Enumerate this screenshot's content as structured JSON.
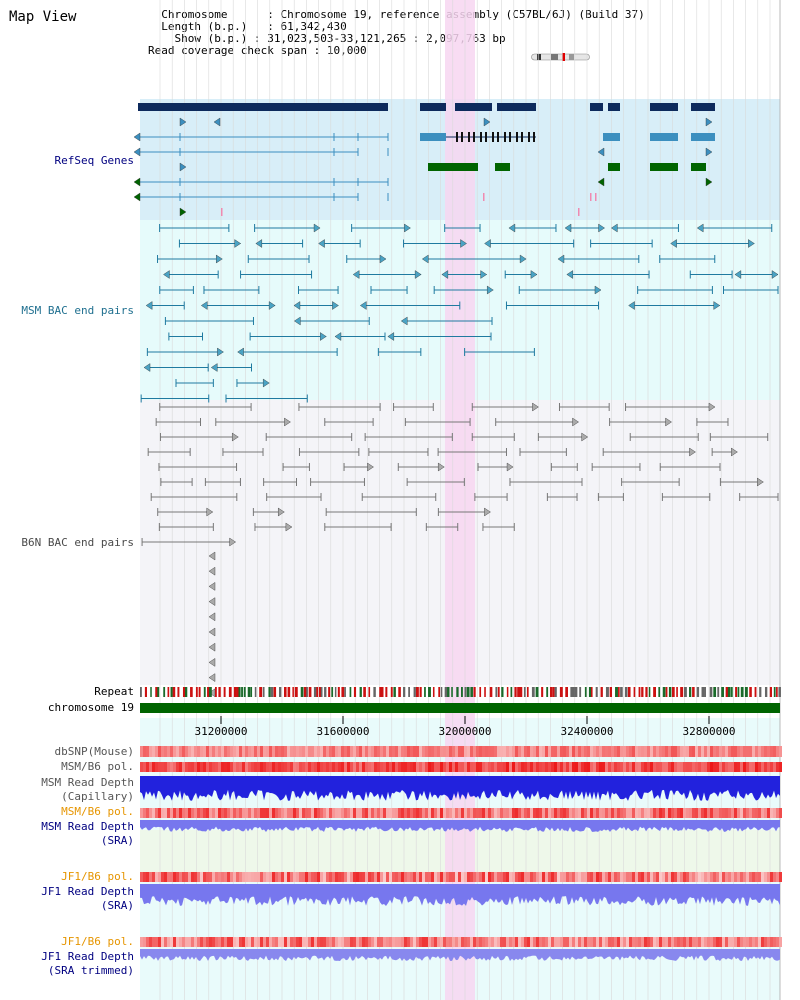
{
  "page_title": "Map View",
  "info": {
    "chromosome_label": "Chromosome",
    "chromosome_value": "Chromosome 19, reference assembly (C57BL/6J) (Build 37)",
    "length_label": "Length (b.p.)",
    "length_value": "61,342,430",
    "show_label": "Show (b.p.)",
    "show_value": "31,023,503-33,121,265 : 2,097,763 bp",
    "coverage_label": "Read coverage check span",
    "coverage_value": "10,000"
  },
  "tracks": {
    "refseq": "RefSeq Genes",
    "msm_bac": "MSM BAC end pairs",
    "b6n_bac": "B6N BAC end pairs",
    "repeat": "Repeat",
    "chromosome": "chromosome 19",
    "dbsnp": "dbSNP(Mouse)",
    "msm_pol": "MSM/B6 pol.",
    "msm_depth_cap_1": "MSM Read Depth",
    "msm_depth_cap_2": "(Capillary)",
    "msm_pol2": "MSM/B6 pol.",
    "msm_depth_sra_1": "MSM Read Depth",
    "msm_depth_sra_2": "(SRA)",
    "jf1_pol": "JF1/B6 pol.",
    "jf1_depth_sra_1": "JF1 Read Depth",
    "jf1_depth_sra_2": "(SRA)",
    "jf1_pol2": "JF1/B6 pol.",
    "jf1_depth_trim_1": "JF1 Read Depth",
    "jf1_depth_trim_2": "(SRA trimmed)"
  },
  "axis_ticks": [
    "31200000",
    "31600000",
    "32000000",
    "32400000",
    "32800000"
  ],
  "colors": {
    "refseq_bg": "#d8eef8",
    "msm_bg": "#e6fbfb",
    "b6n_bg": "#f4f4f8",
    "highlight": "#f7d6f1",
    "gene_dark": "#0d2a5c",
    "gene_mid": "#3c8fbf",
    "gene_green": "#006400",
    "msm_pair": "#1f7aa0",
    "b6n_pair": "#777777",
    "chromosome": "#006400",
    "label_blue": "#000080",
    "label_orange": "#e69500"
  }
}
